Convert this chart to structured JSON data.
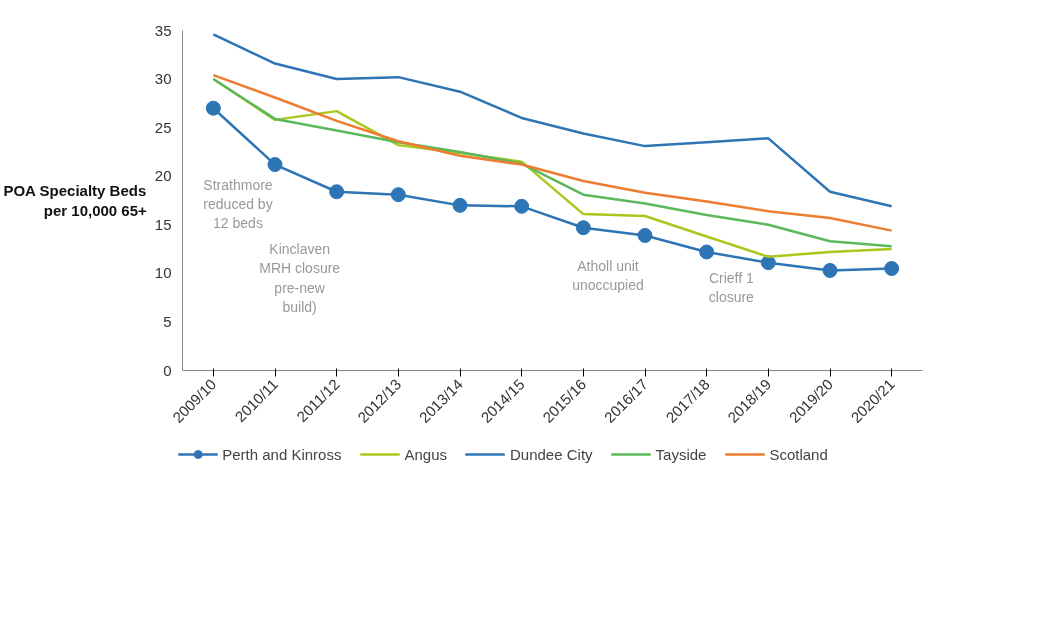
{
  "chart_data": {
    "type": "line",
    "ylabel": "POA Specialty Beds\nper 10,000 65+",
    "categories": [
      "2009/10",
      "2010/11",
      "2011/12",
      "2012/13",
      "2013/14",
      "2014/15",
      "2015/16",
      "2016/17",
      "2017/18",
      "2018/19",
      "2019/20",
      "2020/21"
    ],
    "ylim": [
      0,
      35
    ],
    "yticks": [
      0,
      5,
      10,
      15,
      20,
      25,
      30,
      35
    ],
    "grid": false,
    "legend": "bottom",
    "series": [
      {
        "name": "Perth and Kinross",
        "color": "#2e75b6",
        "marker": "circle",
        "values": [
          27.0,
          21.2,
          18.4,
          18.1,
          17.0,
          16.9,
          14.7,
          13.9,
          12.2,
          11.1,
          10.3,
          10.5
        ]
      },
      {
        "name": "Angus",
        "color": "#a9c81e",
        "marker": "none",
        "values": [
          30.0,
          25.8,
          26.7,
          23.2,
          22.4,
          21.5,
          16.1,
          15.9,
          13.8,
          11.7,
          12.2,
          12.5
        ]
      },
      {
        "name": "Dundee City",
        "color": "#2e75b6",
        "marker": "none",
        "values": [
          34.6,
          31.6,
          30.0,
          30.2,
          28.7,
          26.0,
          24.4,
          23.1,
          23.5,
          23.9,
          18.4,
          16.9
        ]
      },
      {
        "name": "Tayside",
        "color": "#5cb85c",
        "marker": "none",
        "values": [
          30.0,
          25.9,
          24.7,
          23.5,
          22.5,
          21.3,
          18.1,
          17.2,
          16.0,
          15.0,
          13.3,
          12.8
        ]
      },
      {
        "name": "Scotland",
        "color": "#ed7d31",
        "marker": "none",
        "values": [
          30.4,
          28.1,
          25.7,
          23.6,
          22.1,
          21.2,
          19.5,
          18.3,
          17.4,
          16.4,
          15.7,
          14.4
        ]
      }
    ],
    "annotations": [
      "Strathmore\nreduced by\n12 beds",
      "Kinclaven\nMRH closure\npre-new\nbuild)",
      "Atholl unit\nunoccupied",
      "Crieff 1\nclosure"
    ]
  }
}
